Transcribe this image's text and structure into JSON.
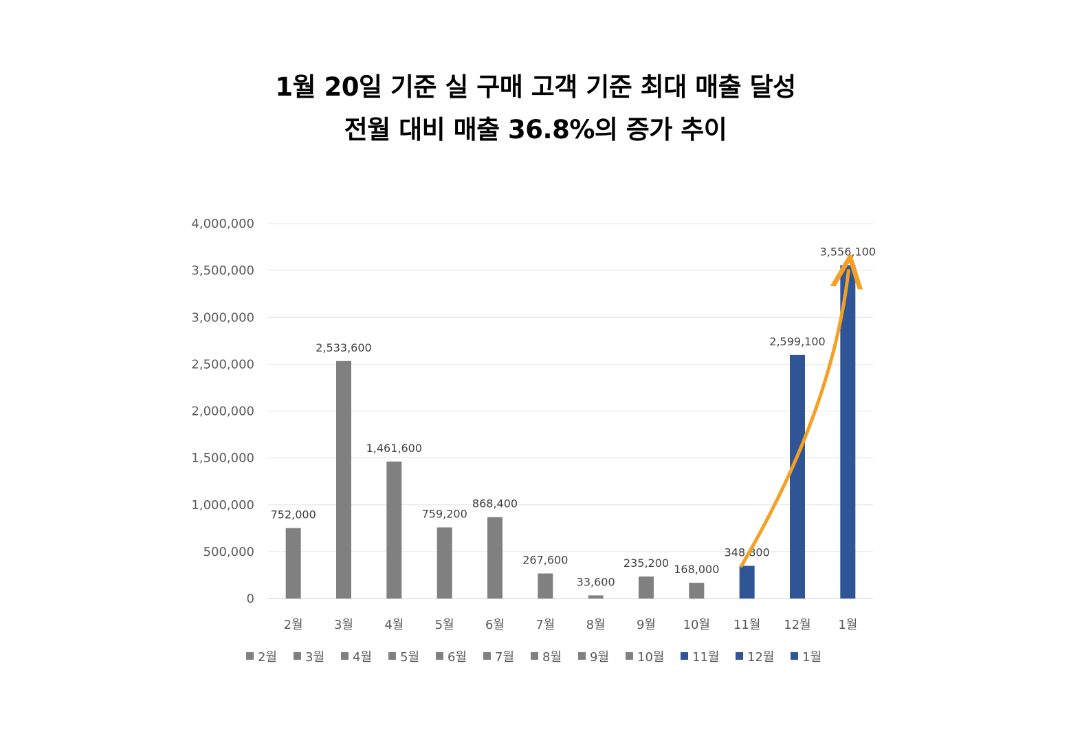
{
  "chart_data": {
    "type": "bar",
    "title": [
      "1월 20일 기준 실 구매 고객 기준 최대 매출 달성",
      "전월 대비 매출 36.8%의 증가 추이"
    ],
    "categories": [
      "2월",
      "3월",
      "4월",
      "5월",
      "6월",
      "7월",
      "8월",
      "9월",
      "10월",
      "11월",
      "12월",
      "1월"
    ],
    "values": [
      752000,
      2533600,
      1461600,
      759200,
      868400,
      267600,
      33600,
      235200,
      168000,
      348800,
      2599100,
      3556100
    ],
    "data_labels": [
      "752,000",
      "2,533,600",
      "1,461,600",
      "759,200",
      "868,400",
      "267,600",
      "33,600",
      "235,200",
      "168,000",
      "348,800",
      "2,599,100",
      "3,556,100"
    ],
    "colors": [
      "#808080",
      "#808080",
      "#808080",
      "#808080",
      "#808080",
      "#808080",
      "#808080",
      "#808080",
      "#808080",
      "#2f5597",
      "#2f5597",
      "#2f5597"
    ],
    "ylim": [
      0,
      4000000
    ],
    "yticks": [
      0,
      500000,
      1000000,
      1500000,
      2000000,
      2500000,
      3000000,
      3500000,
      4000000
    ],
    "ytick_labels": [
      "0",
      "500,000",
      "1,000,000",
      "1,500,000",
      "2,000,000",
      "2,500,000",
      "3,000,000",
      "3,500,000",
      "4,000,000"
    ],
    "grid": true,
    "legend_position": "bottom",
    "annotation": {
      "type": "arrow",
      "color": "#f4a024",
      "from_category": "11월",
      "to_category": "1월"
    },
    "xlabel": "",
    "ylabel": ""
  }
}
